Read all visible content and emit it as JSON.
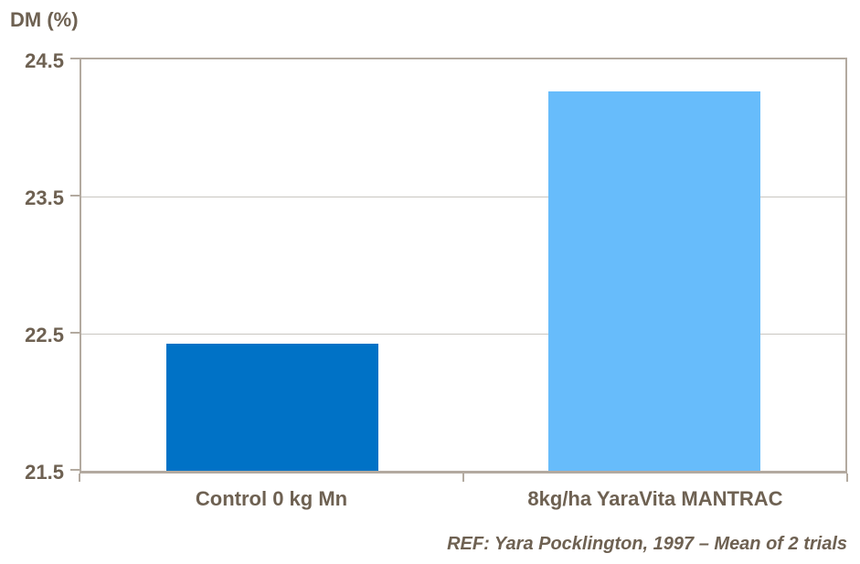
{
  "chart_data": {
    "type": "bar",
    "title": "",
    "ylabel": "DM (%)",
    "xlabel": "",
    "categories": [
      "Control 0 kg Mn",
      "8kg/ha YaraVita MANTRAC"
    ],
    "values": [
      22.43,
      24.27
    ],
    "series_colors": [
      "#0072C6",
      "#67BCFB"
    ],
    "ylim": [
      21.5,
      24.5
    ],
    "yticks": [
      24.5,
      23.5,
      22.5,
      21.5
    ],
    "ytick_labels": [
      "24.5",
      "23.5",
      "22.5",
      "21.5"
    ],
    "grid": true,
    "legend": false
  },
  "footer": {
    "ref_text": "REF: Yara Pocklington, 1997 – Mean of 2 trials"
  },
  "colors": {
    "text": "#6E6152",
    "axis": "#B3AAA0",
    "grid": "#C9C6C1",
    "bg": "#FFFFFF"
  }
}
